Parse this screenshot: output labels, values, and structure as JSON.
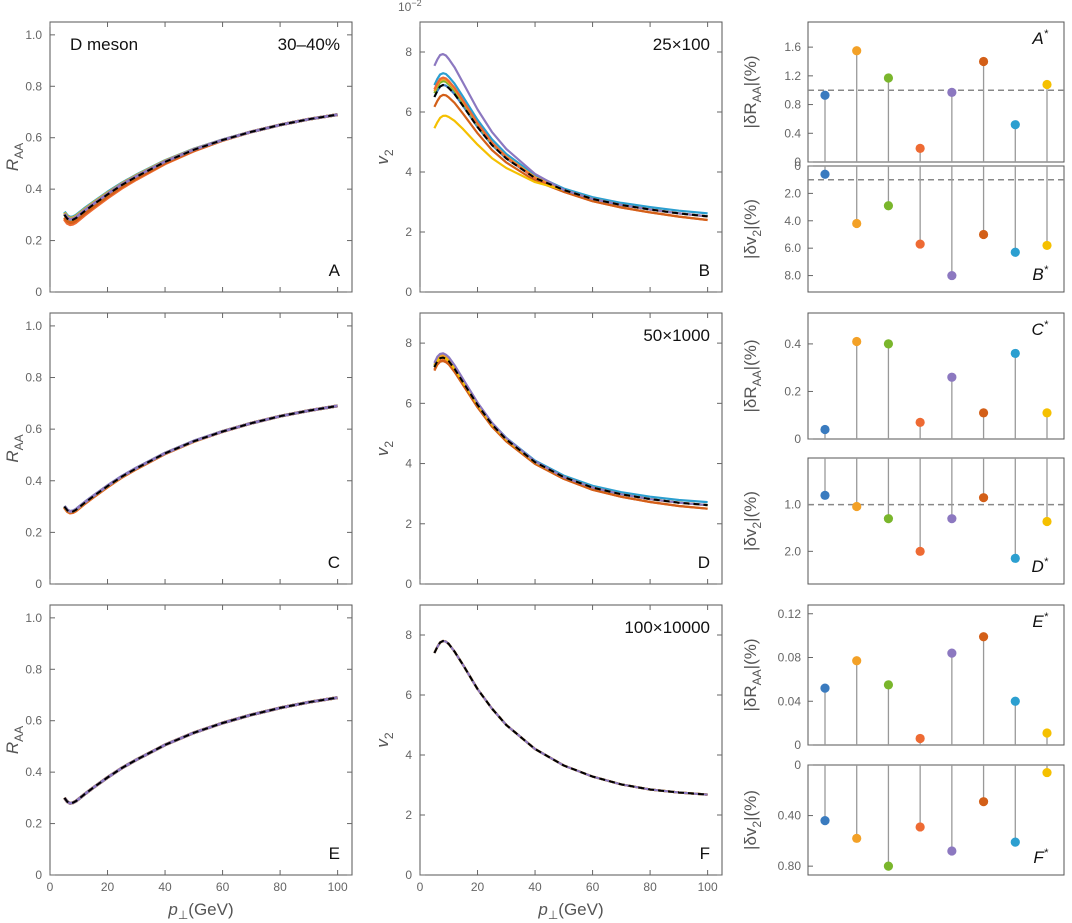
{
  "figure": {
    "title_left": "D meson",
    "centrality": "30–40%",
    "col_xlabel": "p⊥(GeV)",
    "col_xlabel_italic": "p",
    "col_xlabel_sub": "⊥",
    "col_xlabel_unit": "(GeV)",
    "v2_exponent": "10",
    "v2_exponent_power": "−2"
  },
  "palette": {
    "blue": "#3a7bbf",
    "orange": "#f3a127",
    "green": "#7ab62c",
    "red": "#ee6a33",
    "purple": "#8c78c0",
    "burnt": "#d35f18",
    "cyan": "#2c9fd0",
    "yellow": "#f5c000",
    "reference": "#000000",
    "stem": "#999999",
    "dashed_ref": "#888888"
  },
  "chart_data": [
    {
      "id": "A",
      "type": "line",
      "panel_label": "A",
      "ylabel": "R_AA",
      "ylabel_main": "R",
      "ylabel_sub": "AA",
      "xlim": [
        0,
        105
      ],
      "ylim": [
        0,
        1.05
      ],
      "xticks": [
        0,
        20,
        40,
        60,
        80,
        100
      ],
      "yticks": [
        0,
        0.2,
        0.4,
        0.6,
        0.8,
        1.0
      ],
      "ytick_labels": [
        "0",
        "0.2",
        "0.4",
        "0.6",
        "0.8",
        "1.0"
      ],
      "show_xticklabels": false,
      "x": [
        5,
        6,
        7,
        8,
        9,
        10,
        12,
        15,
        20,
        25,
        30,
        40,
        50,
        60,
        70,
        80,
        90,
        100
      ],
      "reference": [
        0.3,
        0.285,
        0.279,
        0.281,
        0.287,
        0.296,
        0.314,
        0.339,
        0.379,
        0.416,
        0.448,
        0.506,
        0.553,
        0.591,
        0.623,
        0.65,
        0.672,
        0.69
      ],
      "series_offsets": [
        0.003,
        -0.015,
        0.002,
        -0.018,
        0.004,
        -0.01,
        0.012,
        0.008
      ],
      "header": "D meson",
      "header_right": "30–40%"
    },
    {
      "id": "B",
      "type": "line",
      "panel_label": "B",
      "ylabel": "v2",
      "ylabel_main": "v",
      "ylabel_sub": "2",
      "xlim": [
        0,
        105
      ],
      "ylim": [
        0,
        9
      ],
      "xticks": [
        0,
        20,
        40,
        60,
        80,
        100
      ],
      "yticks": [
        0,
        2,
        4,
        6,
        8
      ],
      "ytick_labels": [
        "0",
        "2",
        "4",
        "6",
        "8"
      ],
      "show_xticklabels": false,
      "exponent": "10−2",
      "x": [
        5,
        6,
        7,
        8,
        9,
        10,
        12,
        15,
        20,
        25,
        30,
        40,
        50,
        60,
        70,
        80,
        90,
        100
      ],
      "reference": [
        6.5,
        6.7,
        6.85,
        6.9,
        6.88,
        6.8,
        6.6,
        6.2,
        5.5,
        4.9,
        4.45,
        3.8,
        3.4,
        3.1,
        2.9,
        2.75,
        2.62,
        2.52
      ],
      "series_scales": [
        1.0,
        1.03,
        1.02,
        1.04,
        1.16,
        0.95,
        1.06,
        0.84
      ],
      "annotation": "25×100"
    },
    {
      "id": "A*",
      "type": "stem",
      "panel_label": "A",
      "panel_label_sup": "*",
      "ylabel": "|δR_AA|(%)",
      "ylabel_pre": "|δR",
      "ylabel_sub": "AA",
      "ylabel_post": "|(%)",
      "values": [
        0.93,
        1.55,
        1.17,
        0.19,
        0.97,
        1.4,
        0.52,
        1.08
      ],
      "ylim": [
        0,
        1.95
      ],
      "yticks": [
        0,
        0.4,
        0.8,
        1.2,
        1.6
      ],
      "ytick_labels": [
        "0",
        "0.4",
        "0.8",
        "1.2",
        "1.6"
      ],
      "dashed": 1.0,
      "inverted": false
    },
    {
      "id": "B*",
      "type": "stem",
      "panel_label": "B",
      "panel_label_sup": "*",
      "ylabel": "|δv2|(%)",
      "ylabel_pre": "|δv",
      "ylabel_sub": "2",
      "ylabel_post": "|(%)",
      "values": [
        0.6,
        4.2,
        2.9,
        5.7,
        8.0,
        5.0,
        6.3,
        5.8
      ],
      "ylim": [
        0,
        9.2
      ],
      "yticks": [
        0,
        2,
        4,
        6,
        8
      ],
      "ytick_labels": [
        "0",
        "2.0",
        "4.0",
        "6.0",
        "8.0"
      ],
      "dashed": 1.0,
      "inverted": true
    },
    {
      "id": "C",
      "type": "line",
      "panel_label": "C",
      "ylabel": "R_AA",
      "ylabel_main": "R",
      "ylabel_sub": "AA",
      "xlim": [
        0,
        105
      ],
      "ylim": [
        0,
        1.05
      ],
      "xticks": [
        0,
        20,
        40,
        60,
        80,
        100
      ],
      "yticks": [
        0,
        0.2,
        0.4,
        0.6,
        0.8,
        1.0
      ],
      "ytick_labels": [
        "0",
        "0.2",
        "0.4",
        "0.6",
        "0.8",
        "1.0"
      ],
      "show_xticklabels": false,
      "x": [
        5,
        6,
        7,
        8,
        9,
        10,
        12,
        15,
        20,
        25,
        30,
        40,
        50,
        60,
        70,
        80,
        90,
        100
      ],
      "reference": [
        0.3,
        0.285,
        0.279,
        0.281,
        0.287,
        0.296,
        0.314,
        0.339,
        0.379,
        0.416,
        0.448,
        0.506,
        0.553,
        0.591,
        0.623,
        0.65,
        0.672,
        0.69
      ],
      "series_offsets": [
        0.001,
        -0.003,
        0.001,
        -0.004,
        0.002,
        -0.002,
        0.002,
        0.001
      ]
    },
    {
      "id": "D",
      "type": "line",
      "panel_label": "D",
      "ylabel": "v2",
      "ylabel_main": "v",
      "ylabel_sub": "2",
      "xlim": [
        0,
        105
      ],
      "ylim": [
        0,
        9
      ],
      "xticks": [
        0,
        20,
        40,
        60,
        80,
        100
      ],
      "yticks": [
        0,
        2,
        4,
        6,
        8
      ],
      "ytick_labels": [
        "0",
        "2",
        "4",
        "6",
        "8"
      ],
      "show_xticklabels": false,
      "x": [
        5,
        6,
        7,
        8,
        9,
        10,
        12,
        15,
        20,
        25,
        30,
        40,
        50,
        60,
        70,
        80,
        90,
        100
      ],
      "reference": [
        7.2,
        7.4,
        7.5,
        7.52,
        7.48,
        7.4,
        7.15,
        6.7,
        5.95,
        5.3,
        4.8,
        4.05,
        3.55,
        3.2,
        2.98,
        2.82,
        2.7,
        2.62
      ],
      "series_scales": [
        1.0,
        1.01,
        1.005,
        0.99,
        1.02,
        0.985,
        1.01,
        1.0
      ],
      "annotation": "50×1000"
    },
    {
      "id": "C*",
      "type": "stem",
      "panel_label": "C",
      "panel_label_sup": "*",
      "ylabel": "|δR_AA|(%)",
      "ylabel_pre": "|δR",
      "ylabel_sub": "AA",
      "ylabel_post": "|(%)",
      "values": [
        0.04,
        0.41,
        0.4,
        0.07,
        0.26,
        0.11,
        0.36,
        0.11
      ],
      "ylim": [
        0,
        0.53
      ],
      "yticks": [
        0,
        0.2,
        0.4
      ],
      "ytick_labels": [
        "0",
        "0.2",
        "0.4"
      ],
      "dashed": null,
      "inverted": false
    },
    {
      "id": "D*",
      "type": "stem",
      "panel_label": "D",
      "panel_label_sup": "*",
      "ylabel": "|δv2|(%)",
      "ylabel_pre": "|δv",
      "ylabel_sub": "2",
      "ylabel_post": "|(%)",
      "values": [
        0.8,
        1.04,
        1.3,
        2.0,
        1.3,
        0.85,
        2.15,
        1.36
      ],
      "ylim": [
        0,
        2.7
      ],
      "yticks": [
        1,
        2
      ],
      "ytick_labels": [
        "1.0",
        "2.0"
      ],
      "dashed": 1.0,
      "inverted": true
    },
    {
      "id": "E",
      "type": "line",
      "panel_label": "E",
      "ylabel": "R_AA",
      "ylabel_main": "R",
      "ylabel_sub": "AA",
      "xlim": [
        0,
        105
      ],
      "ylim": [
        0,
        1.05
      ],
      "xticks": [
        0,
        20,
        40,
        60,
        80,
        100
      ],
      "yticks": [
        0,
        0.2,
        0.4,
        0.6,
        0.8,
        1.0
      ],
      "ytick_labels": [
        "0",
        "0.2",
        "0.4",
        "0.6",
        "0.8",
        "1.0"
      ],
      "show_xticklabels": true,
      "x": [
        5,
        6,
        7,
        8,
        9,
        10,
        12,
        15,
        20,
        25,
        30,
        40,
        50,
        60,
        70,
        80,
        90,
        100
      ],
      "reference": [
        0.3,
        0.285,
        0.279,
        0.281,
        0.287,
        0.296,
        0.314,
        0.339,
        0.379,
        0.416,
        0.448,
        0.506,
        0.553,
        0.591,
        0.623,
        0.65,
        0.672,
        0.69
      ],
      "series_offsets": [
        0,
        0,
        0,
        0,
        0,
        0,
        0,
        0
      ]
    },
    {
      "id": "F",
      "type": "line",
      "panel_label": "F",
      "ylabel": "v2",
      "ylabel_main": "v",
      "ylabel_sub": "2",
      "xlim": [
        0,
        105
      ],
      "ylim": [
        0,
        9
      ],
      "xticks": [
        0,
        20,
        40,
        60,
        80,
        100
      ],
      "yticks": [
        0,
        2,
        4,
        6,
        8
      ],
      "ytick_labels": [
        "0",
        "2",
        "4",
        "6",
        "8"
      ],
      "show_xticklabels": true,
      "x": [
        5,
        6,
        7,
        8,
        9,
        10,
        12,
        15,
        20,
        25,
        30,
        40,
        50,
        60,
        70,
        80,
        90,
        100
      ],
      "reference": [
        7.4,
        7.6,
        7.75,
        7.8,
        7.78,
        7.7,
        7.45,
        7.0,
        6.2,
        5.55,
        5.0,
        4.2,
        3.65,
        3.28,
        3.02,
        2.85,
        2.75,
        2.68
      ],
      "series_scales": [
        1.0,
        1.0,
        1.0,
        1.0,
        1.0,
        1.0,
        1.0,
        1.0
      ],
      "annotation": "100×10000"
    },
    {
      "id": "E*",
      "type": "stem",
      "panel_label": "E",
      "panel_label_sup": "*",
      "ylabel": "|δR_AA|(%)",
      "ylabel_pre": "|δR",
      "ylabel_sub": "AA",
      "ylabel_post": "|(%)",
      "values": [
        0.052,
        0.077,
        0.055,
        0.006,
        0.084,
        0.099,
        0.04,
        0.011
      ],
      "ylim": [
        0,
        0.128
      ],
      "yticks": [
        0,
        0.04,
        0.08,
        0.12
      ],
      "ytick_labels": [
        "0",
        "0.04",
        "0.08",
        "0.12"
      ],
      "dashed": null,
      "inverted": false
    },
    {
      "id": "F*",
      "type": "stem",
      "panel_label": "F",
      "panel_label_sup": "*",
      "ylabel": "|δv2|(%)",
      "ylabel_pre": "|δv",
      "ylabel_sub": "2",
      "ylabel_post": "|(%)",
      "values": [
        0.44,
        0.58,
        0.8,
        0.49,
        0.68,
        0.29,
        0.61,
        0.06
      ],
      "ylim": [
        0,
        0.87
      ],
      "yticks": [
        0,
        0.4,
        0.8
      ],
      "ytick_labels": [
        "0",
        "0.40",
        "0.80"
      ],
      "dashed": null,
      "inverted": true
    }
  ]
}
